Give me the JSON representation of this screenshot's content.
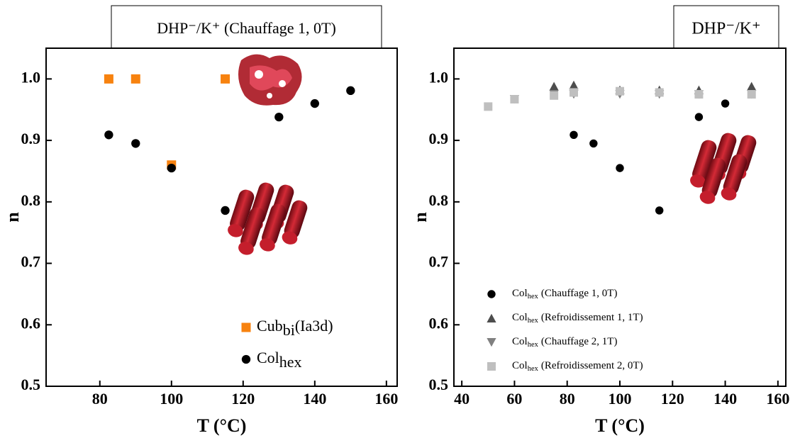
{
  "chart_data": [
    {
      "type": "scatter",
      "title": "DHP⁻/K⁺ (Chauffage 1, 0T)",
      "xlabel": "T (°C)",
      "ylabel": "n",
      "xlim": [
        65,
        163
      ],
      "ylim": [
        0.5,
        1.05
      ],
      "xticks": [
        80,
        100,
        120,
        140,
        160
      ],
      "yticks": [
        0.5,
        0.6,
        0.7,
        0.8,
        0.9,
        {
          "value": 1,
          "label": "1.0"
        }
      ],
      "legend": "lower right",
      "series": [
        {
          "name": "Cub",
          "name_sub": "bi",
          "name_suffix": "(Ia3d)",
          "color": "#f7820f",
          "marker": "square",
          "x": [
            82.5,
            90,
            100,
            115
          ],
          "values": [
            1.0,
            1.0,
            0.86,
            1.0
          ]
        },
        {
          "name": "Col",
          "name_sub": "hex",
          "color": "#000000",
          "marker": "circle",
          "x": [
            82.5,
            90,
            100,
            115,
            130,
            140,
            150
          ],
          "values": [
            0.909,
            0.895,
            0.855,
            0.786,
            0.938,
            0.96,
            0.981
          ]
        }
      ]
    },
    {
      "type": "scatter",
      "title": "DHP⁻/K⁺",
      "xlabel": "T (°C)",
      "ylabel": "n",
      "xlim": [
        37,
        163
      ],
      "ylim": [
        0.5,
        1.05
      ],
      "xticks": [
        40,
        60,
        80,
        100,
        120,
        140,
        160
      ],
      "yticks": [
        0.5,
        0.6,
        0.7,
        0.8,
        0.9,
        {
          "value": 1,
          "label": "1.0"
        }
      ],
      "legend": "lower left",
      "series": [
        {
          "name": "Col",
          "name_sub": "hex",
          "name_suffix": "(Chauffage 1, 0T)",
          "color": "#000000",
          "marker": "circle",
          "x": [
            82.5,
            90,
            100,
            115,
            130,
            140,
            150
          ],
          "values": [
            0.909,
            0.895,
            0.855,
            0.786,
            0.938,
            0.96,
            0.981
          ]
        },
        {
          "name": "Col",
          "name_sub": "hex",
          "name_suffix": "(Refroidissement 1, 1T)",
          "color": "#4d4d4d",
          "marker": "triangle-up",
          "x": [
            75,
            82.5,
            100,
            115,
            130,
            150
          ],
          "values": [
            0.988,
            0.99,
            0.982,
            0.982,
            0.982,
            0.988
          ]
        },
        {
          "name": "Col",
          "name_sub": "hex",
          "name_suffix": "(Chauffage 2, 1T)",
          "color": "#808080",
          "marker": "triangle-down",
          "x": [
            60,
            75,
            82.5,
            100,
            115,
            130,
            150
          ],
          "values": [
            0.967,
            0.975,
            0.975,
            0.975,
            0.975,
            0.975,
            0.975
          ]
        },
        {
          "name": "Col",
          "name_sub": "hex",
          "name_suffix": "(Refroidissement 2, 0T)",
          "color": "#bfbfbf",
          "marker": "square",
          "x": [
            50,
            60,
            75,
            82.5,
            100,
            115,
            130,
            150
          ],
          "values": [
            0.955,
            0.967,
            0.973,
            0.978,
            0.98,
            0.978,
            0.975,
            0.975
          ]
        }
      ]
    }
  ]
}
